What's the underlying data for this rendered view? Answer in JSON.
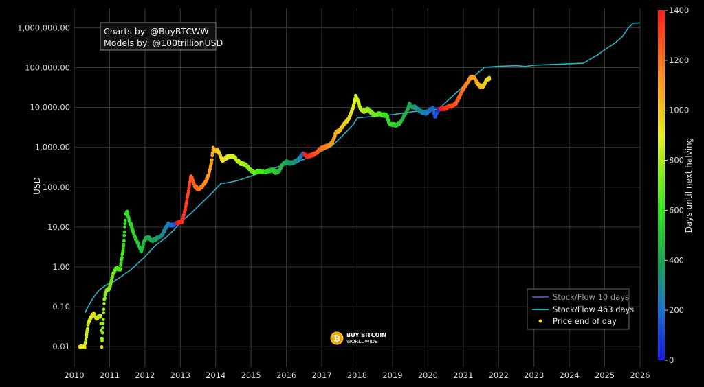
{
  "chart_data": {
    "type": "scatter",
    "title": "",
    "ylabel": "USD",
    "y_scale": "log",
    "ylim": [
      0.005,
      2000000
    ],
    "xlim": [
      2010,
      2026
    ],
    "grid": true,
    "x_ticks": [
      "2010",
      "2011",
      "2012",
      "2013",
      "2014",
      "2015",
      "2016",
      "2017",
      "2018",
      "2019",
      "2020",
      "2021",
      "2022",
      "2023",
      "2024",
      "2025",
      "2026"
    ],
    "y_ticks": [
      {
        "value": 0.01,
        "label": "0.01"
      },
      {
        "value": 0.1,
        "label": "0.10"
      },
      {
        "value": 1,
        "label": "1.00"
      },
      {
        "value": 10,
        "label": "10.00"
      },
      {
        "value": 100,
        "label": "100.00"
      },
      {
        "value": 1000,
        "label": "1,000.00"
      },
      {
        "value": 10000,
        "label": "10,000.00"
      },
      {
        "value": 100000,
        "label": "100,000.00"
      },
      {
        "value": 1000000,
        "label": "1,000,000.00"
      }
    ],
    "annotation": [
      "Charts by: @BuyBTCWW",
      "Models by: @100trillionUSD"
    ],
    "legend_placement": "bottom-right",
    "series": [
      {
        "name": "Stock/Flow 10 days",
        "type": "line",
        "color": "#4a4a9a",
        "points": []
      },
      {
        "name": "Stock/Flow 463 days",
        "type": "line",
        "color": "#26b5c8",
        "points": [
          [
            2010.3,
            0.07
          ],
          [
            2010.5,
            0.15
          ],
          [
            2010.7,
            0.26
          ],
          [
            2010.9,
            0.35
          ],
          [
            2011.1,
            0.42
          ],
          [
            2011.3,
            0.55
          ],
          [
            2011.6,
            0.85
          ],
          [
            2012.0,
            1.8
          ],
          [
            2012.3,
            3.5
          ],
          [
            2012.6,
            5.5
          ],
          [
            2012.85,
            9.0
          ],
          [
            2013.0,
            13
          ],
          [
            2013.3,
            22
          ],
          [
            2013.6,
            40
          ],
          [
            2013.9,
            72
          ],
          [
            2014.15,
            125
          ],
          [
            2014.3,
            128
          ],
          [
            2014.6,
            145
          ],
          [
            2015.0,
            190
          ],
          [
            2015.5,
            270
          ],
          [
            2015.9,
            360
          ],
          [
            2016.3,
            430
          ],
          [
            2016.5,
            500
          ],
          [
            2016.7,
            600
          ],
          [
            2017.0,
            800
          ],
          [
            2017.3,
            1100
          ],
          [
            2017.6,
            2000
          ],
          [
            2017.9,
            3800
          ],
          [
            2018.0,
            5500
          ],
          [
            2018.5,
            6000
          ],
          [
            2019.0,
            6600
          ],
          [
            2019.4,
            7500
          ],
          [
            2019.8,
            8300
          ],
          [
            2020.1,
            8900
          ],
          [
            2020.3,
            9000
          ],
          [
            2020.6,
            16000
          ],
          [
            2020.9,
            28000
          ],
          [
            2021.2,
            50000
          ],
          [
            2021.5,
            85000
          ],
          [
            2021.6,
            102000
          ],
          [
            2022.0,
            108000
          ],
          [
            2022.5,
            112000
          ],
          [
            2022.75,
            107000
          ],
          [
            2023.0,
            115000
          ],
          [
            2023.5,
            120000
          ],
          [
            2024.0,
            125000
          ],
          [
            2024.4,
            130000
          ],
          [
            2024.8,
            210000
          ],
          [
            2025.0,
            280000
          ],
          [
            2025.3,
            420000
          ],
          [
            2025.5,
            600000
          ],
          [
            2025.65,
            950000
          ],
          [
            2025.8,
            1300000
          ],
          [
            2026.0,
            1320000
          ]
        ]
      },
      {
        "name": "Price end of day",
        "type": "scatter",
        "color": "#ffd21a",
        "color_by": "Days until next halving",
        "points": [
          [
            2010.15,
            0.01,
            880
          ],
          [
            2010.3,
            0.01,
            870
          ],
          [
            2010.4,
            0.04,
            860
          ],
          [
            2010.5,
            0.06,
            850
          ],
          [
            2010.55,
            0.07,
            840
          ],
          [
            2010.62,
            0.05,
            830
          ],
          [
            2010.75,
            0.06,
            780
          ],
          [
            2010.78,
            0.01,
            775
          ],
          [
            2010.85,
            0.15,
            760
          ],
          [
            2010.9,
            0.25,
            750
          ],
          [
            2011.0,
            0.3,
            720
          ],
          [
            2011.1,
            0.7,
            690
          ],
          [
            2011.2,
            0.95,
            660
          ],
          [
            2011.3,
            0.85,
            640
          ],
          [
            2011.4,
            3.5,
            610
          ],
          [
            2011.45,
            20,
            600
          ],
          [
            2011.5,
            25,
            590
          ],
          [
            2011.55,
            15,
            580
          ],
          [
            2011.6,
            12,
            570
          ],
          [
            2011.7,
            6,
            540
          ],
          [
            2011.8,
            4,
            510
          ],
          [
            2011.9,
            2.5,
            480
          ],
          [
            2012.0,
            5,
            450
          ],
          [
            2012.1,
            5.5,
            420
          ],
          [
            2012.2,
            4.5,
            400
          ],
          [
            2012.3,
            5,
            370
          ],
          [
            2012.45,
            6,
            320
          ],
          [
            2012.55,
            8,
            280
          ],
          [
            2012.65,
            12,
            240
          ],
          [
            2012.75,
            11,
            200
          ],
          [
            2012.85,
            12,
            150
          ],
          [
            2012.95,
            13,
            1400
          ],
          [
            2013.05,
            14,
            1370
          ],
          [
            2013.15,
            30,
            1330
          ],
          [
            2013.25,
            100,
            1300
          ],
          [
            2013.3,
            200,
            1280
          ],
          [
            2013.4,
            110,
            1250
          ],
          [
            2013.5,
            90,
            1220
          ],
          [
            2013.6,
            100,
            1190
          ],
          [
            2013.7,
            130,
            1150
          ],
          [
            2013.8,
            200,
            1120
          ],
          [
            2013.88,
            400,
            1090
          ],
          [
            2013.93,
            1000,
            1070
          ],
          [
            2014.0,
            800,
            1040
          ],
          [
            2014.05,
            900,
            1020
          ],
          [
            2014.1,
            700,
            1000
          ],
          [
            2014.2,
            450,
            960
          ],
          [
            2014.3,
            550,
            930
          ],
          [
            2014.4,
            600,
            900
          ],
          [
            2014.5,
            600,
            870
          ],
          [
            2014.6,
            480,
            840
          ],
          [
            2014.7,
            400,
            810
          ],
          [
            2014.8,
            380,
            780
          ],
          [
            2014.9,
            330,
            750
          ],
          [
            2015.0,
            260,
            720
          ],
          [
            2015.1,
            230,
            690
          ],
          [
            2015.2,
            250,
            660
          ],
          [
            2015.4,
            240,
            600
          ],
          [
            2015.6,
            270,
            540
          ],
          [
            2015.7,
            230,
            510
          ],
          [
            2015.8,
            260,
            480
          ],
          [
            2015.9,
            380,
            440
          ],
          [
            2016.0,
            430,
            400
          ],
          [
            2016.1,
            400,
            370
          ],
          [
            2016.2,
            420,
            340
          ],
          [
            2016.3,
            450,
            300
          ],
          [
            2016.42,
            600,
            250
          ],
          [
            2016.48,
            700,
            200
          ],
          [
            2016.52,
            650,
            1400
          ],
          [
            2016.6,
            600,
            1380
          ],
          [
            2016.75,
            650,
            1320
          ],
          [
            2016.85,
            720,
            1280
          ],
          [
            2016.95,
            900,
            1240
          ],
          [
            2017.05,
            1000,
            1200
          ],
          [
            2017.2,
            1100,
            1150
          ],
          [
            2017.3,
            1300,
            1120
          ],
          [
            2017.4,
            2400,
            1080
          ],
          [
            2017.5,
            2600,
            1040
          ],
          [
            2017.6,
            3500,
            1000
          ],
          [
            2017.7,
            4500,
            970
          ],
          [
            2017.8,
            6000,
            940
          ],
          [
            2017.9,
            11000,
            910
          ],
          [
            2017.96,
            19000,
            890
          ],
          [
            2018.05,
            13000,
            860
          ],
          [
            2018.1,
            9000,
            840
          ],
          [
            2018.2,
            8000,
            800
          ],
          [
            2018.3,
            9000,
            770
          ],
          [
            2018.4,
            7500,
            740
          ],
          [
            2018.5,
            6500,
            700
          ],
          [
            2018.6,
            7000,
            670
          ],
          [
            2018.7,
            6600,
            640
          ],
          [
            2018.85,
            6300,
            600
          ],
          [
            2018.9,
            4000,
            580
          ],
          [
            2019.0,
            3700,
            560
          ],
          [
            2019.1,
            3600,
            530
          ],
          [
            2019.2,
            4000,
            500
          ],
          [
            2019.3,
            5500,
            460
          ],
          [
            2019.4,
            8000,
            430
          ],
          [
            2019.48,
            12000,
            400
          ],
          [
            2019.55,
            10500,
            380
          ],
          [
            2019.65,
            10000,
            340
          ],
          [
            2019.75,
            8500,
            300
          ],
          [
            2019.85,
            7500,
            260
          ],
          [
            2019.95,
            7200,
            230
          ],
          [
            2020.05,
            8500,
            200
          ],
          [
            2020.15,
            9500,
            170
          ],
          [
            2020.2,
            5500,
            150
          ],
          [
            2020.25,
            7000,
            130
          ],
          [
            2020.3,
            8800,
            100
          ],
          [
            2020.4,
            9500,
            1400
          ],
          [
            2020.5,
            9300,
            1360
          ],
          [
            2020.6,
            11000,
            1330
          ],
          [
            2020.7,
            10800,
            1300
          ],
          [
            2020.8,
            13000,
            1260
          ],
          [
            2020.9,
            19000,
            1230
          ],
          [
            2021.0,
            29000,
            1200
          ],
          [
            2021.1,
            40000,
            1170
          ],
          [
            2021.2,
            55000,
            1140
          ],
          [
            2021.3,
            58000,
            1100
          ],
          [
            2021.4,
            40000,
            1070
          ],
          [
            2021.5,
            33000,
            1040
          ],
          [
            2021.58,
            35000,
            1010
          ],
          [
            2021.65,
            47000,
            980
          ],
          [
            2021.75,
            55000,
            950
          ]
        ]
      }
    ],
    "colorbar": {
      "label": "Days until next halving",
      "ticks": [
        0,
        200,
        400,
        600,
        800,
        1000,
        1200,
        1400
      ],
      "range": [
        0,
        1400
      ]
    }
  },
  "logo": {
    "line1": "BUY BITCOIN",
    "line2": "WORLDWIDE",
    "symbol": "₿"
  }
}
